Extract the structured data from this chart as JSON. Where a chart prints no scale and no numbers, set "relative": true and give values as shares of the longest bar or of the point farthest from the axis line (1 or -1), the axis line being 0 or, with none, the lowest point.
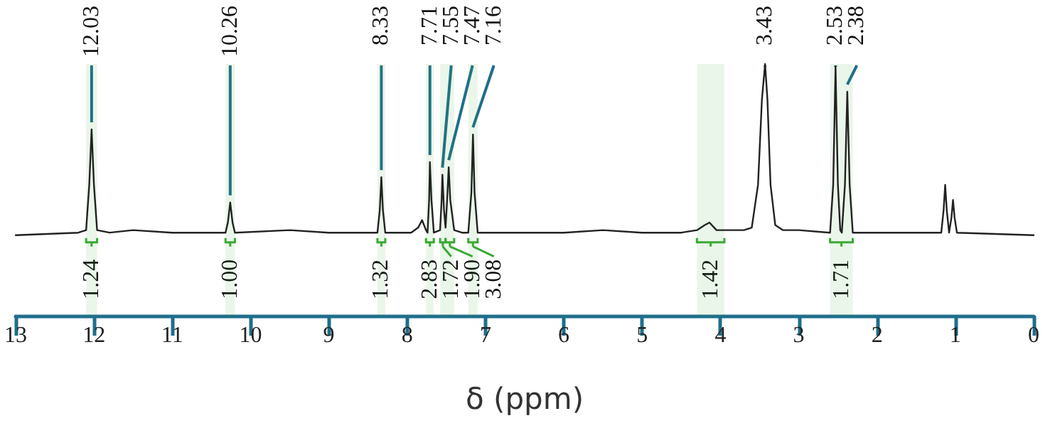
{
  "chart_data": {
    "type": "line",
    "relative": true,
    "xlabel": "δ (ppm)",
    "xlim": [
      13,
      0
    ],
    "xticks": [
      13,
      12,
      11,
      10,
      9,
      8,
      7,
      6,
      5,
      4,
      3,
      2,
      1,
      0
    ],
    "grid": false,
    "marker": "none",
    "line_style": "solid",
    "series": [
      {
        "color": "#222222",
        "x": [
          13,
          12.2,
          12.1,
          12.06,
          12.03,
          12,
          11.96,
          11.8,
          11.5,
          11,
          10.5,
          10.32,
          10.29,
          10.26,
          10.23,
          10.2,
          9.5,
          9,
          8.5,
          8.38,
          8.35,
          8.33,
          8.31,
          8.28,
          7.95,
          7.86,
          7.81,
          7.76,
          7.74,
          7.72,
          7.71,
          7.69,
          7.66,
          7.58,
          7.56,
          7.55,
          7.53,
          7.51,
          7.49,
          7.47,
          7.45,
          7.4,
          7.3,
          7.22,
          7.18,
          7.16,
          7.14,
          7.1,
          6.5,
          6,
          5.5,
          5,
          4.5,
          4.3,
          4.2,
          4.14,
          4.05,
          3.95,
          3.7,
          3.6,
          3.52,
          3.47,
          3.43,
          3.4,
          3.36,
          3.3,
          3.2,
          3,
          2.6,
          2.56,
          2.53,
          2.5,
          2.47,
          2.45,
          2.41,
          2.38,
          2.35,
          2.31,
          1.5,
          1.18,
          1.15,
          1.13,
          1.11,
          1.08,
          1.05,
          1.03,
          1.01,
          0.98,
          0
        ],
        "values": [
          0.32,
          0.33,
          0.34,
          0.52,
          0.74,
          0.52,
          0.34,
          0.33,
          0.34,
          0.33,
          0.33,
          0.33,
          0.37,
          0.45,
          0.37,
          0.33,
          0.34,
          0.33,
          0.33,
          0.33,
          0.42,
          0.55,
          0.42,
          0.33,
          0.33,
          0.35,
          0.38,
          0.34,
          0.33,
          0.46,
          0.61,
          0.46,
          0.33,
          0.34,
          0.46,
          0.56,
          0.42,
          0.35,
          0.46,
          0.59,
          0.46,
          0.34,
          0.33,
          0.33,
          0.49,
          0.72,
          0.49,
          0.33,
          0.33,
          0.33,
          0.34,
          0.33,
          0.33,
          0.34,
          0.36,
          0.37,
          0.34,
          0.34,
          0.34,
          0.35,
          0.52,
          0.86,
          1,
          0.86,
          0.52,
          0.36,
          0.34,
          0.34,
          0.33,
          0.52,
          0.99,
          0.52,
          0.34,
          0.33,
          0.52,
          0.89,
          0.52,
          0.33,
          0.33,
          0.33,
          0.42,
          0.52,
          0.42,
          0.33,
          0.39,
          0.46,
          0.39,
          0.33,
          0.32
        ]
      }
    ],
    "annotations": [
      {
        "text": "12.03",
        "x": 12.03,
        "y": 0.74
      },
      {
        "text": "10.26",
        "x": 10.26,
        "y": 0.45
      },
      {
        "text": "8.33",
        "x": 8.33,
        "y": 0.55
      },
      {
        "text": "7.71",
        "x": 7.71,
        "y": 0.61
      },
      {
        "text": "7.55",
        "x": 7.55,
        "y": 0.56
      },
      {
        "text": "7.47",
        "x": 7.47,
        "y": 0.59
      },
      {
        "text": "7.16",
        "x": 7.16,
        "y": 0.72
      },
      {
        "text": "3.43",
        "x": 3.43,
        "y": 1
      },
      {
        "text": "2.53",
        "x": 2.53,
        "y": 0.99
      },
      {
        "text": "2.38",
        "x": 2.38,
        "y": 0.89
      }
    ],
    "bands": [
      {
        "axis": "x",
        "from": 12.1,
        "to": 11.96,
        "label": "1.24",
        "color": "#3aaa35"
      },
      {
        "axis": "x",
        "from": 10.32,
        "to": 10.2,
        "label": "1.00",
        "color": "#3aaa35"
      },
      {
        "axis": "x",
        "from": 8.38,
        "to": 8.28,
        "label": "1.32",
        "color": "#3aaa35"
      },
      {
        "axis": "x",
        "from": 7.76,
        "to": 7.66,
        "label": "2.83",
        "color": "#3aaa35"
      },
      {
        "axis": "x",
        "from": 7.58,
        "to": 7.51,
        "label": "1.72",
        "color": "#3aaa35"
      },
      {
        "axis": "x",
        "from": 7.51,
        "to": 7.4,
        "label": "1.90",
        "color": "#3aaa35"
      },
      {
        "axis": "x",
        "from": 7.22,
        "to": 7.1,
        "label": "3.08",
        "color": "#3aaa35"
      },
      {
        "axis": "x",
        "from": 4.3,
        "to": 3.95,
        "label": "1.42",
        "color": "#3aaa35"
      },
      {
        "axis": "x",
        "from": 2.6,
        "to": 2.31,
        "label": "1.71",
        "color": "#3aaa35"
      }
    ]
  }
}
